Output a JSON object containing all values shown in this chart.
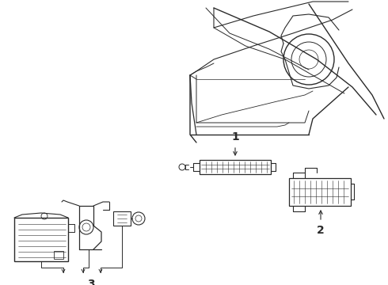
{
  "bg_color": "#ffffff",
  "line_color": "#2a2a2a",
  "line_width": 0.9,
  "label_1": "1",
  "label_2": "2",
  "label_3": "3",
  "label_fontsize": 10,
  "figsize": [
    4.9,
    3.6
  ],
  "dpi": 100
}
